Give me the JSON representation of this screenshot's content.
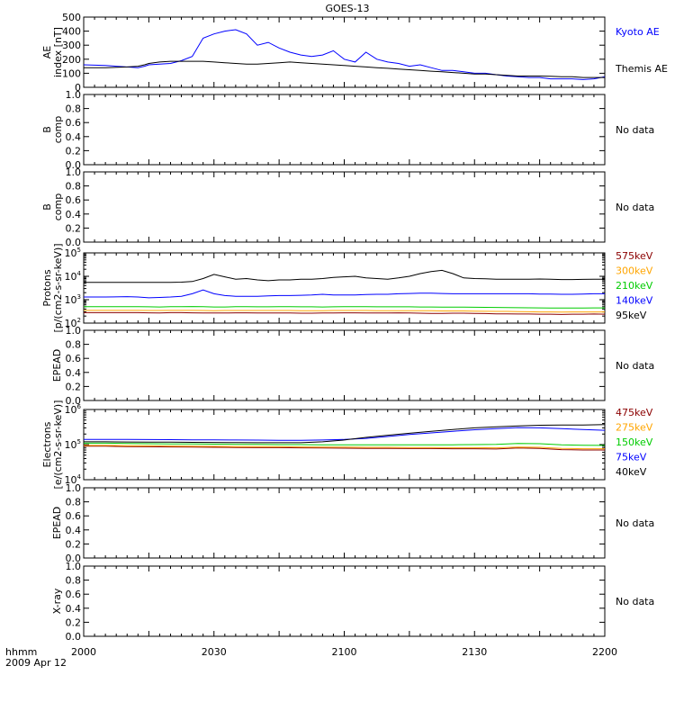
{
  "figure": {
    "title": "GOES-13",
    "time_label": "hhmm",
    "date_label": "2009 Apr 12",
    "x_ticks": [
      "2000",
      "2030",
      "2100",
      "2130",
      "2200"
    ]
  },
  "chart_data": [
    {
      "type": "line",
      "panel": "ae",
      "ylabel": "AE index [nT]",
      "ylim": [
        0,
        500
      ],
      "yticks": [
        "0",
        "100",
        "200",
        "300",
        "400",
        "500"
      ],
      "x_minutes": [
        0,
        10,
        20,
        25,
        28,
        30,
        35,
        40,
        45,
        50,
        55,
        60,
        65,
        70,
        75,
        80,
        85,
        90,
        95,
        100,
        105,
        110,
        115,
        120,
        125,
        130,
        135,
        140,
        145,
        150,
        155,
        160,
        165,
        170,
        175,
        180,
        185,
        190,
        195,
        200,
        205,
        210,
        215,
        220,
        225,
        230,
        235,
        240
      ],
      "series": [
        {
          "name": "Kyoto AE",
          "color": "#0000ff",
          "values": [
            160,
            155,
            145,
            140,
            150,
            160,
            165,
            170,
            190,
            220,
            350,
            380,
            400,
            410,
            380,
            300,
            320,
            280,
            250,
            230,
            220,
            230,
            260,
            200,
            180,
            250,
            200,
            180,
            170,
            150,
            160,
            140,
            120,
            120,
            110,
            100,
            100,
            90,
            80,
            75,
            70,
            70,
            60,
            60,
            60,
            55,
            60,
            75
          ]
        },
        {
          "name": "Themis AE",
          "color": "#000000",
          "values": [
            140,
            140,
            145,
            150,
            160,
            170,
            180,
            185,
            185,
            185,
            185,
            180,
            175,
            170,
            165,
            165,
            170,
            175,
            180,
            175,
            170,
            165,
            160,
            155,
            150,
            145,
            140,
            135,
            130,
            125,
            120,
            115,
            110,
            105,
            100,
            95,
            95,
            90,
            85,
            80,
            80,
            80,
            78,
            75,
            75,
            70,
            70,
            70
          ]
        }
      ]
    },
    {
      "type": "line",
      "panel": "bcomp-1",
      "ylabel": "B comp",
      "ylim": [
        0,
        1
      ],
      "yticks": [
        "0.0",
        "0.2",
        "0.4",
        "0.6",
        "0.8",
        "1.0"
      ],
      "status": "No data"
    },
    {
      "type": "line",
      "panel": "bcomp-2",
      "ylabel": "B comp",
      "ylim": [
        0,
        1
      ],
      "yticks": [
        "0.0",
        "0.2",
        "0.4",
        "0.6",
        "0.8",
        "1.0"
      ],
      "status": "No data"
    },
    {
      "type": "line",
      "panel": "protons",
      "ylabel": "Protons [p/(cm2-s-sr-keV)]",
      "ylim": [
        100,
        100000
      ],
      "log_scale": true,
      "yticks": [
        "10^2",
        "10^3",
        "10^4",
        "10^5"
      ],
      "x_minutes": [
        0,
        10,
        20,
        25,
        30,
        35,
        40,
        45,
        50,
        55,
        60,
        65,
        70,
        75,
        80,
        85,
        90,
        95,
        100,
        105,
        110,
        115,
        120,
        125,
        130,
        135,
        140,
        145,
        150,
        155,
        160,
        165,
        170,
        175,
        180,
        185,
        190,
        195,
        200,
        205,
        210,
        215,
        220,
        225,
        230,
        235,
        240
      ],
      "series": [
        {
          "name": "575keV",
          "color": "#8b0000",
          "values": [
            280,
            280,
            280,
            280,
            275,
            270,
            280,
            280,
            275,
            270,
            270,
            270,
            275,
            275,
            270,
            270,
            270,
            270,
            265,
            265,
            270,
            270,
            275,
            275,
            270,
            270,
            270,
            275,
            270,
            265,
            260,
            260,
            265,
            265,
            260,
            255,
            250,
            250,
            245,
            245,
            240,
            240,
            235,
            240,
            240,
            245,
            240
          ]
        },
        {
          "name": "300keV",
          "color": "#ffa500",
          "values": [
            350,
            350,
            350,
            350,
            345,
            345,
            350,
            350,
            350,
            345,
            340,
            345,
            345,
            345,
            345,
            345,
            345,
            345,
            340,
            340,
            340,
            345,
            345,
            345,
            345,
            340,
            340,
            340,
            340,
            335,
            335,
            330,
            330,
            330,
            325,
            320,
            315,
            315,
            310,
            305,
            300,
            300,
            295,
            300,
            300,
            300,
            300
          ]
        },
        {
          "name": "210keV",
          "color": "#00cc00",
          "values": [
            500,
            500,
            500,
            500,
            495,
            490,
            500,
            500,
            510,
            500,
            490,
            490,
            500,
            500,
            495,
            495,
            500,
            500,
            495,
            495,
            490,
            495,
            500,
            500,
            500,
            495,
            495,
            495,
            495,
            490,
            490,
            485,
            485,
            480,
            475,
            470,
            465,
            460,
            455,
            450,
            445,
            440,
            440,
            440,
            440,
            445,
            445
          ]
        },
        {
          "name": "140keV",
          "color": "#0000ff",
          "values": [
            1300,
            1300,
            1350,
            1300,
            1200,
            1250,
            1300,
            1400,
            1800,
            2600,
            1800,
            1500,
            1400,
            1400,
            1400,
            1450,
            1500,
            1500,
            1550,
            1600,
            1700,
            1600,
            1600,
            1600,
            1650,
            1700,
            1700,
            1800,
            1850,
            1900,
            1900,
            1850,
            1800,
            1800,
            1800,
            1800,
            1800,
            1800,
            1800,
            1800,
            1750,
            1750,
            1700,
            1700,
            1750,
            1800,
            1800
          ]
        },
        {
          "name": "95keV",
          "color": "#000000",
          "values": [
            5500,
            5500,
            5500,
            5500,
            5500,
            5500,
            5500,
            5600,
            6000,
            8000,
            12000,
            9500,
            7500,
            8000,
            7000,
            6500,
            7000,
            7000,
            7500,
            7500,
            8000,
            9000,
            9500,
            10000,
            8500,
            8000,
            7500,
            8500,
            10000,
            13000,
            16000,
            18000,
            13000,
            8500,
            8000,
            7800,
            7500,
            7500,
            7500,
            7500,
            7700,
            7500,
            7300,
            7300,
            7400,
            7500,
            7500
          ]
        }
      ]
    },
    {
      "type": "line",
      "panel": "epead-1",
      "ylabel": "EPEAD",
      "ylim": [
        0,
        1
      ],
      "yticks": [
        "0.0",
        "0.2",
        "0.4",
        "0.6",
        "0.8",
        "1.0"
      ],
      "status": "No data"
    },
    {
      "type": "line",
      "panel": "electrons",
      "ylabel": "Electrons [e/(cm2-s-sr-keV)]",
      "ylim": [
        10000,
        1000000
      ],
      "log_scale": true,
      "yticks": [
        "10^4",
        "10^5",
        "10^6"
      ],
      "x_minutes": [
        0,
        10,
        20,
        30,
        40,
        50,
        60,
        70,
        80,
        90,
        100,
        110,
        120,
        130,
        140,
        150,
        160,
        170,
        180,
        190,
        200,
        210,
        220,
        230,
        240
      ],
      "series": [
        {
          "name": "475keV",
          "color": "#8b0000",
          "values": [
            90000,
            90000,
            88000,
            87000,
            86000,
            85000,
            84000,
            83000,
            82000,
            82000,
            81000,
            80000,
            79000,
            78000,
            78000,
            77000,
            77000,
            76000,
            76000,
            75000,
            80000,
            78000,
            72000,
            70000,
            70000
          ]
        },
        {
          "name": "275keV",
          "color": "#ffa500",
          "values": [
            95000,
            95000,
            93000,
            92000,
            91000,
            90000,
            89000,
            88000,
            88000,
            87000,
            86000,
            85000,
            85000,
            84000,
            84000,
            83000,
            83000,
            82000,
            82000,
            81000,
            85000,
            84000,
            78000,
            76000,
            76000
          ]
        },
        {
          "name": "150keV",
          "color": "#00cc00",
          "values": [
            110000,
            110000,
            108000,
            106000,
            105000,
            104000,
            103000,
            102000,
            101000,
            100000,
            100000,
            99000,
            99000,
            98000,
            98000,
            98000,
            98000,
            99000,
            100000,
            102000,
            108000,
            106000,
            98000,
            96000,
            95000
          ]
        },
        {
          "name": "75keV",
          "color": "#0000ff",
          "values": [
            140000,
            140000,
            140000,
            139000,
            138000,
            137000,
            136000,
            135000,
            134000,
            133000,
            133000,
            135000,
            140000,
            150000,
            170000,
            195000,
            215000,
            240000,
            265000,
            285000,
            305000,
            300000,
            285000,
            270000,
            255000
          ]
        },
        {
          "name": "40keV",
          "color": "#000000",
          "values": [
            120000,
            120000,
            119000,
            118000,
            117000,
            116000,
            115000,
            114000,
            113000,
            113000,
            113000,
            120000,
            135000,
            160000,
            185000,
            210000,
            240000,
            270000,
            300000,
            320000,
            340000,
            355000,
            360000,
            360000,
            370000
          ]
        }
      ]
    },
    {
      "type": "line",
      "panel": "epead-2",
      "ylabel": "EPEAD",
      "ylim": [
        0,
        1
      ],
      "yticks": [
        "0.0",
        "0.2",
        "0.4",
        "0.6",
        "0.8",
        "1.0"
      ],
      "status": "No data"
    },
    {
      "type": "line",
      "panel": "xray",
      "ylabel": "X-ray",
      "ylim": [
        0,
        1
      ],
      "yticks": [
        "0.0",
        "0.2",
        "0.4",
        "0.6",
        "0.8",
        "1.0"
      ],
      "status": "No data"
    }
  ]
}
